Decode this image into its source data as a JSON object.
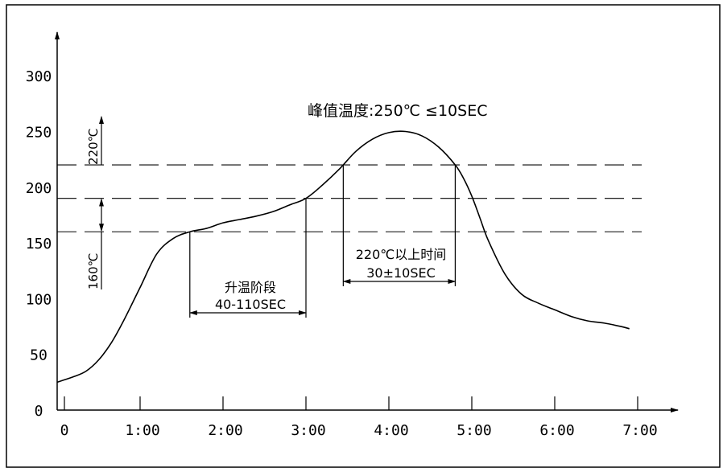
{
  "chart_data": {
    "type": "line",
    "title": "",
    "xlabel": "",
    "ylabel": "",
    "xlim": [
      0,
      7.3
    ],
    "ylim": [
      0,
      340
    ],
    "x_ticks": [
      0,
      1,
      2,
      3,
      4,
      5,
      6,
      7
    ],
    "x_tick_labels": [
      "0",
      "1:00",
      "2:00",
      "3:00",
      "4:00",
      "5:00",
      "6:00",
      "7:00"
    ],
    "y_ticks": [
      0,
      50,
      100,
      150,
      200,
      250,
      300
    ],
    "y_tick_labels": [
      "0",
      "50",
      "100",
      "150",
      "200",
      "250",
      "300"
    ],
    "reference_lines": [
      220,
      190,
      160
    ],
    "series": [
      {
        "x": [
          0,
          0.2,
          0.35,
          0.5,
          0.65,
          0.8,
          1.0,
          1.2,
          1.4,
          1.6,
          1.8,
          2.0,
          2.2,
          2.4,
          2.6,
          2.8,
          3.0,
          3.2,
          3.4,
          3.6,
          3.8,
          4.0,
          4.2,
          4.4,
          4.6,
          4.8,
          4.9,
          5.0,
          5.1,
          5.2,
          5.4,
          5.6,
          5.8,
          6.0,
          6.2,
          6.4,
          6.6,
          6.8,
          6.9
        ],
        "y": [
          25,
          30,
          35,
          45,
          60,
          80,
          110,
          140,
          154,
          160,
          163,
          168,
          171,
          174,
          178,
          184,
          190,
          202,
          216,
          232,
          243,
          249,
          250,
          246,
          236,
          220,
          208,
          192,
          172,
          152,
          122,
          104,
          96,
          90,
          84,
          80,
          78,
          75,
          73
        ]
      }
    ],
    "annotations": {
      "peak_label": "峰值温度:250℃ ≤10SEC",
      "ramp_label": "升温阶段",
      "ramp_time": "40-110SEC",
      "above220_label": "220℃以上时间",
      "above220_time": "30±10SEC",
      "left_label_220": "220℃",
      "left_label_160": "160℃"
    }
  }
}
